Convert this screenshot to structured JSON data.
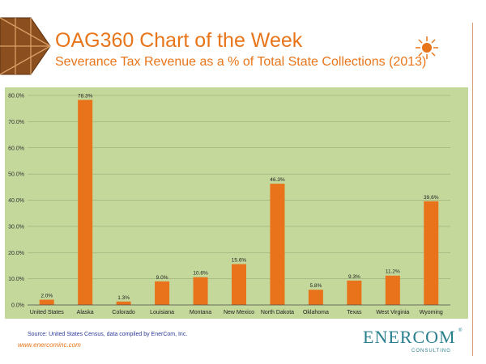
{
  "header": {
    "title": "OAG360 Chart of the Week",
    "subtitle": "Severance Tax Revenue as a % of Total State Collections (2013)"
  },
  "chart_data": {
    "type": "bar",
    "categories": [
      "United States",
      "Alaska",
      "Colorado",
      "Louisiana",
      "Montana",
      "New Mexico",
      "North Dakota",
      "Oklahoma",
      "Texas",
      "West Virginia",
      "Wyoming"
    ],
    "values": [
      2.0,
      78.3,
      1.3,
      9.0,
      10.6,
      15.6,
      46.3,
      5.8,
      9.3,
      11.2,
      39.6
    ],
    "value_labels": [
      "2.0%",
      "78.3%",
      "1.3%",
      "9.0%",
      "10.6%",
      "15.6%",
      "46.3%",
      "5.8%",
      "9.3%",
      "11.2%",
      "39.6%"
    ],
    "ylim": [
      0,
      80
    ],
    "yticks": [
      0,
      10,
      20,
      30,
      40,
      50,
      60,
      70,
      80
    ],
    "ytick_labels": [
      "0.0%",
      "10.0%",
      "20.0%",
      "30.0%",
      "40.0%",
      "50.0%",
      "60.0%",
      "70.0%",
      "80.0%"
    ],
    "grid": true,
    "colors": {
      "bar": "#e8731a",
      "plot_bg": "#c4d89b",
      "grid": "#8f9f70"
    }
  },
  "footer": {
    "source": "Source: United States Census, data compiled by EnerCom, Inc.",
    "website": "www.enercominc.com",
    "brand_name": "ENERCOM",
    "brand_sub": "CONSULTING",
    "brand_mark": "®"
  },
  "icons": {
    "logo": "hexagon-logo-icon",
    "sun": "sun-icon"
  }
}
